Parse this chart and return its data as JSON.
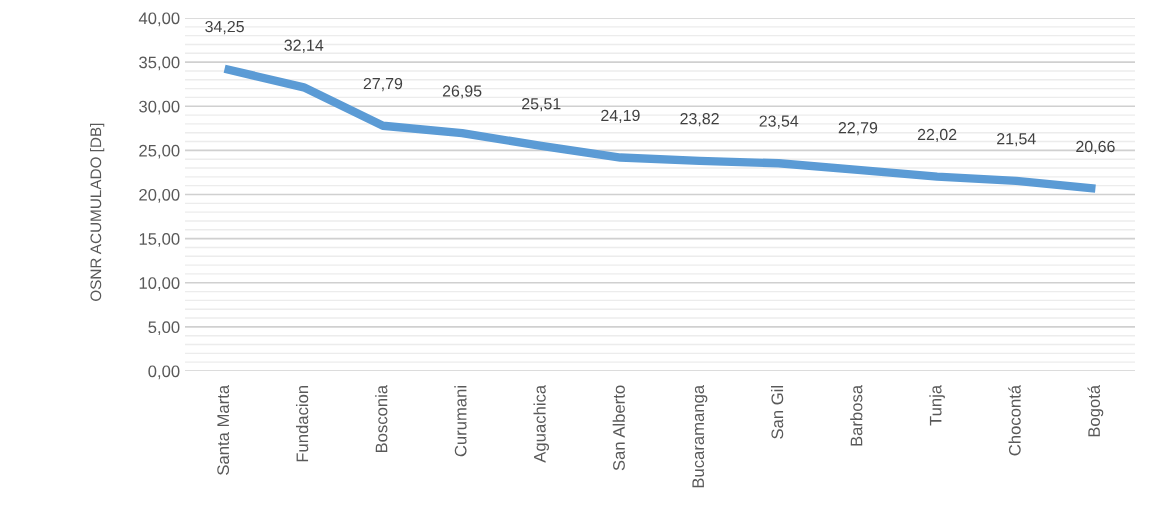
{
  "chart_data": {
    "type": "line",
    "ylabel": "OSNR ACUMULADO [DB]",
    "categories": [
      "Santa Marta",
      "Fundacion",
      "Bosconia",
      "Curumani",
      "Aguachica",
      "San Alberto",
      "Bucaramanga",
      "San Gil",
      "Barbosa",
      "Tunja",
      "Chocontá",
      "Bogotá"
    ],
    "series": [
      {
        "color": "#5b9bd5",
        "values": [
          34.25,
          32.14,
          27.79,
          26.95,
          25.51,
          24.19,
          23.82,
          23.54,
          22.79,
          22.02,
          21.54,
          20.66
        ],
        "value_labels": [
          "34,25",
          "32,14",
          "27,79",
          "26,95",
          "25,51",
          "24,19",
          "23,82",
          "23,54",
          "22,79",
          "22,02",
          "21,54",
          "20,66"
        ]
      }
    ],
    "ylim": [
      0,
      40
    ],
    "yticks": [
      {
        "value": 0,
        "label": "0,00"
      },
      {
        "value": 5,
        "label": "5,00"
      },
      {
        "value": 10,
        "label": "10,00"
      },
      {
        "value": 15,
        "label": "15,00"
      },
      {
        "value": 20,
        "label": "20,00"
      },
      {
        "value": 25,
        "label": "25,00"
      },
      {
        "value": 30,
        "label": "30,00"
      },
      {
        "value": 35,
        "label": "35,00"
      },
      {
        "value": 40,
        "label": "40,00"
      }
    ],
    "grid": "y",
    "legend": false,
    "marker": "none",
    "line_style": "solid"
  }
}
